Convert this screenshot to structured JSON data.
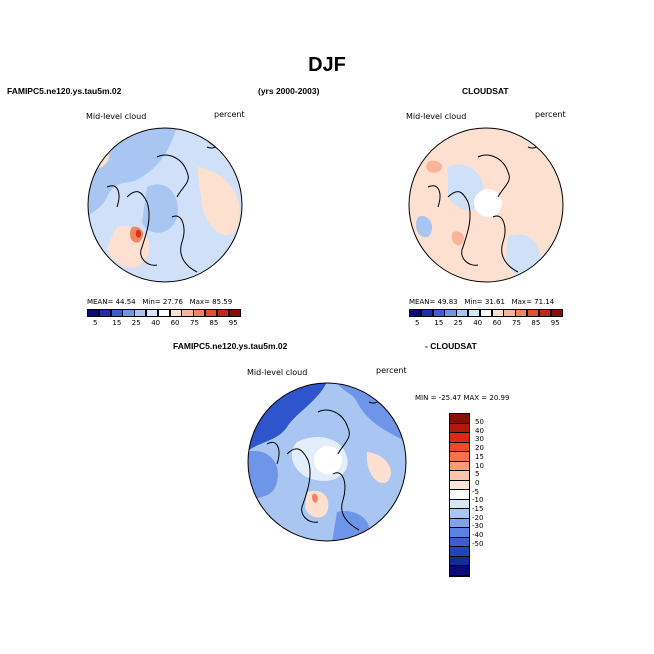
{
  "title": "DJF",
  "panel_left": {
    "case": "FAMIPC5.ne120.ys.tau5m.02",
    "variable": "Mid-level cloud",
    "units": "percent",
    "mean_label": "MEAN=",
    "mean": "44.54",
    "min_label": "Min=",
    "min": "27.76",
    "max_label": "Max=",
    "max": "85.59"
  },
  "panel_center_header": "(yrs 2000-2003)",
  "panel_right": {
    "case": "CLOUDSAT",
    "variable": "Mid-level cloud",
    "units": "percent",
    "mean_label": "MEAN=",
    "mean": "49.83",
    "min_label": "Min=",
    "min": "31.61",
    "max_label": "Max=",
    "max": "71.14"
  },
  "panel_diff": {
    "case_left": "FAMIPC5.ne120.ys.tau5m.02",
    "case_right": "- CLOUDSAT",
    "variable": "Mid-level cloud",
    "units": "percent",
    "minmax": "MIN = -25.47  MAX =  20.99"
  },
  "colorbar_abs": {
    "ticks": [
      "5",
      "15",
      "25",
      "40",
      "60",
      "75",
      "85",
      "95"
    ],
    "colors": [
      "#0a0a7a",
      "#1f2fa8",
      "#3a5fd0",
      "#6f95e8",
      "#a7c5f2",
      "#d6e6fa",
      "#ffffff",
      "#fde0cf",
      "#f9b49a",
      "#f28360",
      "#e4512d",
      "#c22a14",
      "#8a0e06"
    ]
  },
  "colorbar_diff": {
    "ticks": [
      "50",
      "40",
      "30",
      "20",
      "15",
      "10",
      "5",
      "0",
      "-5",
      "-10",
      "-15",
      "-20",
      "-30",
      "-40",
      "-50"
    ],
    "colors": [
      "#8a0e06",
      "#b3180c",
      "#d82a14",
      "#ee4a28",
      "#f6724a",
      "#fa9b76",
      "#fcc5aa",
      "#fde6d8",
      "#ffffff",
      "#d6e6fa",
      "#a9c6f2",
      "#7fa3ea",
      "#5a82e0",
      "#3a5fd0",
      "#2244b8",
      "#132d98",
      "#0a0a7a"
    ]
  },
  "colors": {
    "land_outline": "#000000",
    "ocean_blue": "#cfe0f8",
    "light_blue": "#a9c6f2",
    "mid_blue": "#6f95e8",
    "dark_blue": "#2f55cc",
    "peach": "#fde0cf",
    "orange": "#f28360",
    "red": "#d9351b",
    "white": "#ffffff"
  }
}
